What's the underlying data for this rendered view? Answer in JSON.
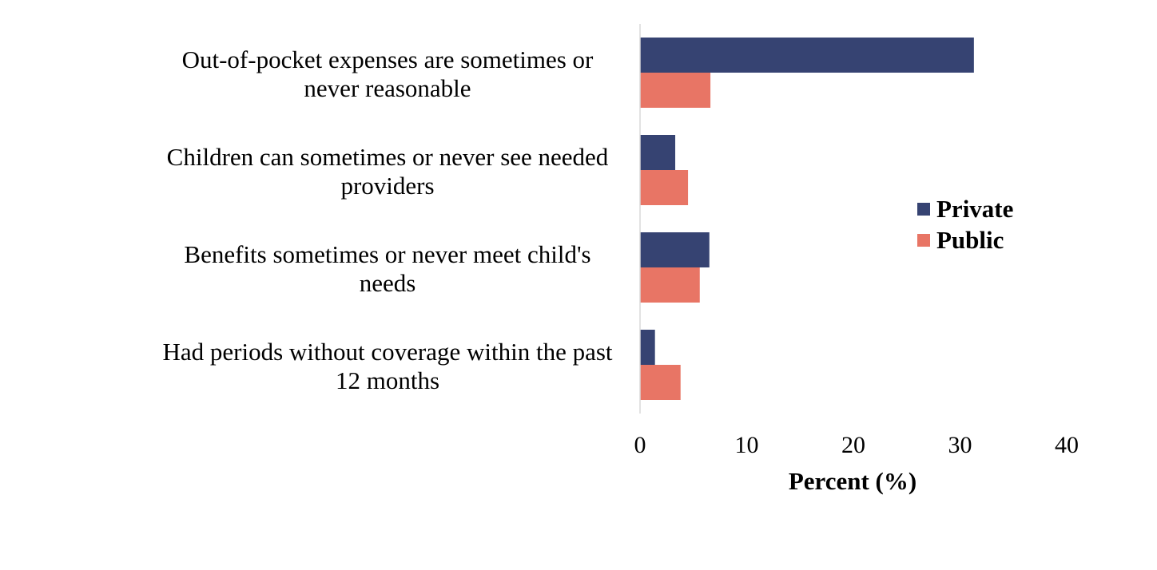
{
  "chart_data": {
    "type": "bar",
    "orientation": "horizontal",
    "categories": [
      [
        "Out-of-pocket expenses are sometimes or",
        "never reasonable"
      ],
      [
        "Children can sometimes or never see needed",
        "providers"
      ],
      [
        "Benefits sometimes or never meet child's",
        "needs"
      ],
      [
        "Had periods without coverage within the past",
        "12 months"
      ]
    ],
    "series": [
      {
        "name": "Private",
        "color": "#364372",
        "values": [
          31.3,
          3.3,
          6.5,
          1.4
        ]
      },
      {
        "name": "Public",
        "color": "#E87565",
        "values": [
          6.6,
          4.5,
          5.6,
          3.8
        ]
      }
    ],
    "xlabel": "Percent (%)",
    "xlim": [
      0,
      40
    ],
    "xticks": [
      0,
      10,
      20,
      30,
      40
    ],
    "grid": false,
    "legend_position": "right"
  }
}
